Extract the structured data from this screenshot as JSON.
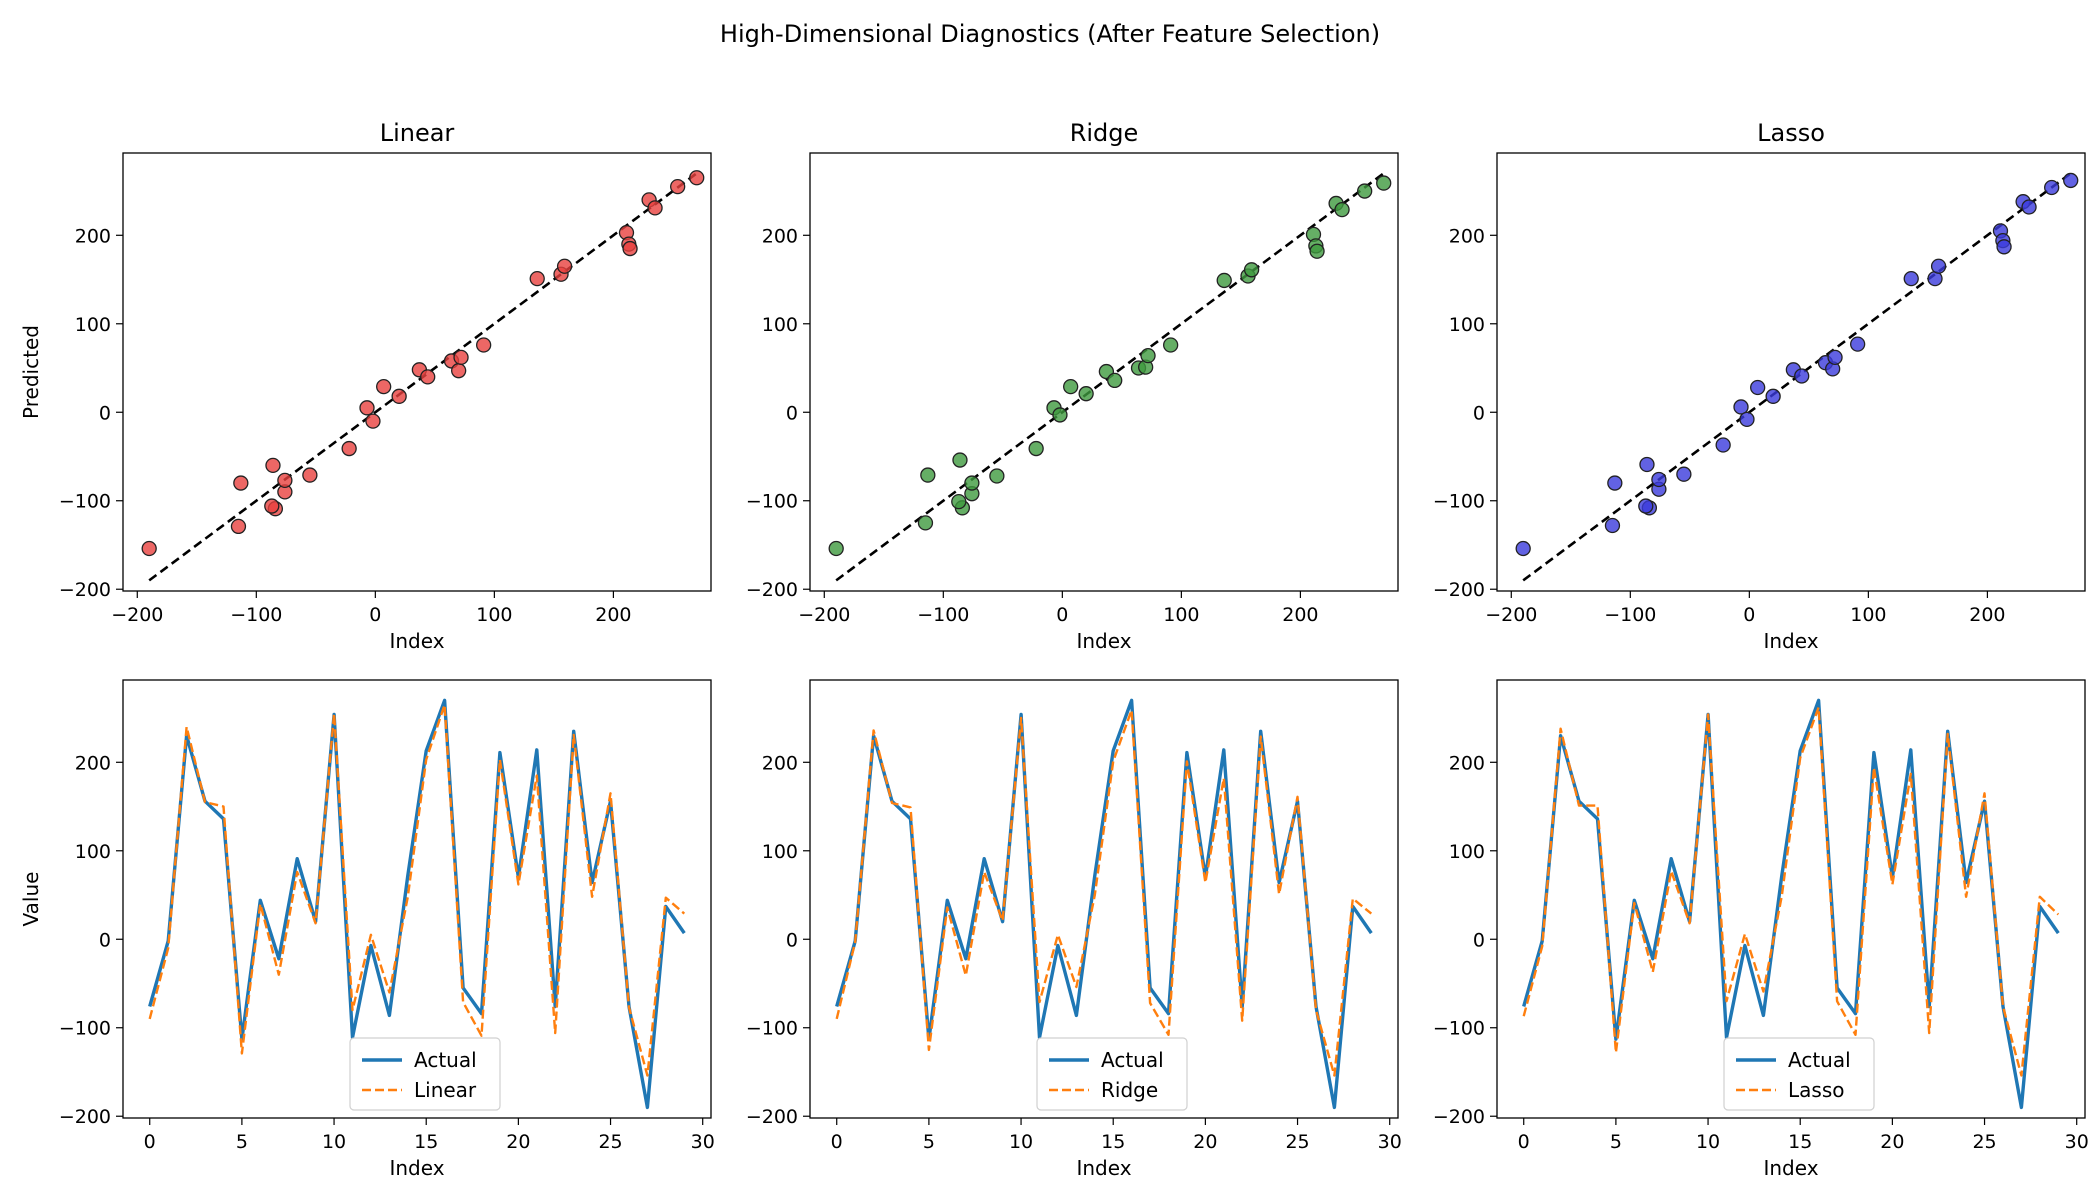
{
  "figure": {
    "suptitle": "High-Dimensional Diagnostics (After Feature Selection)"
  },
  "chart_data": [
    {
      "id": "scatter-linear",
      "type": "scatter",
      "title": "Linear",
      "xlabel": "Index",
      "ylabel": "Predicted",
      "xlim": [
        -212,
        282
      ],
      "ylim": [
        -202,
        293
      ],
      "xticks": [
        -200,
        -100,
        0,
        100,
        200
      ],
      "yticks": [
        -200,
        -100,
        0,
        100,
        200
      ],
      "color": "#e8413f",
      "reference_line": {
        "from": [
          -190,
          -190
        ],
        "to": [
          270,
          270
        ],
        "style": "dashed",
        "color": "#000000"
      },
      "x": [
        -190,
        -113,
        -115,
        -86,
        -84,
        -87,
        -76,
        -76,
        -55,
        -22,
        -7,
        -2,
        7,
        20,
        37,
        44,
        64,
        70,
        72,
        91,
        136,
        156,
        159,
        211,
        213,
        214,
        230,
        235,
        254,
        270
      ],
      "y": [
        -154,
        -80,
        -129,
        -60,
        -109,
        -106,
        -90,
        -77,
        -71,
        -41,
        5,
        -10,
        29,
        18,
        48,
        40,
        58,
        47,
        62,
        76,
        151,
        156,
        165,
        203,
        190,
        185,
        240,
        231,
        255,
        265
      ]
    },
    {
      "id": "scatter-ridge",
      "type": "scatter",
      "title": "Ridge",
      "xlabel": "Index",
      "ylabel": "",
      "xlim": [
        -212,
        282
      ],
      "ylim": [
        -202,
        293
      ],
      "xticks": [
        -200,
        -100,
        0,
        100,
        200
      ],
      "yticks": [
        -200,
        -100,
        0,
        100,
        200
      ],
      "color": "#3f9a3f",
      "reference_line": {
        "from": [
          -190,
          -190
        ],
        "to": [
          270,
          270
        ],
        "style": "dashed",
        "color": "#000000"
      },
      "x": [
        -190,
        -113,
        -115,
        -86,
        -84,
        -87,
        -76,
        -76,
        -55,
        -22,
        -7,
        -2,
        7,
        20,
        37,
        44,
        64,
        70,
        72,
        91,
        136,
        156,
        159,
        211,
        213,
        214,
        230,
        235,
        254,
        270
      ],
      "y": [
        -154,
        -71,
        -125,
        -54,
        -108,
        -101,
        -92,
        -80,
        -72,
        -41,
        5,
        -3,
        29,
        21,
        46,
        36,
        50,
        51,
        64,
        76,
        149,
        154,
        161,
        201,
        188,
        182,
        236,
        229,
        250,
        259
      ]
    },
    {
      "id": "scatter-lasso",
      "type": "scatter",
      "title": "Lasso",
      "xlabel": "Index",
      "ylabel": "",
      "xlim": [
        -212,
        282
      ],
      "ylim": [
        -202,
        293
      ],
      "xticks": [
        -200,
        -100,
        0,
        100,
        200
      ],
      "yticks": [
        -200,
        -100,
        0,
        100,
        200
      ],
      "color": "#3b3bdc",
      "reference_line": {
        "from": [
          -190,
          -190
        ],
        "to": [
          270,
          270
        ],
        "style": "dashed",
        "color": "#000000"
      },
      "x": [
        -190,
        -113,
        -115,
        -86,
        -84,
        -87,
        -76,
        -76,
        -55,
        -22,
        -7,
        -2,
        7,
        20,
        37,
        44,
        64,
        70,
        72,
        91,
        136,
        156,
        159,
        211,
        213,
        214,
        230,
        235,
        254,
        270
      ],
      "y": [
        -154,
        -80,
        -128,
        -59,
        -108,
        -106,
        -87,
        -76,
        -70,
        -37,
        6,
        -8,
        28,
        18,
        48,
        41,
        56,
        49,
        62,
        77,
        151,
        151,
        165,
        205,
        194,
        187,
        238,
        232,
        254,
        262
      ]
    },
    {
      "id": "line-linear",
      "type": "line",
      "title": "",
      "xlabel": "Index",
      "ylabel": "Value",
      "xlim": [
        -1.45,
        30.45
      ],
      "ylim": [
        -202,
        293
      ],
      "xticks": [
        0,
        5,
        10,
        15,
        20,
        25,
        30
      ],
      "yticks": [
        -200,
        -100,
        0,
        100,
        200
      ],
      "legend": {
        "placement": "lower-center"
      },
      "x": [
        0,
        1,
        2,
        3,
        4,
        5,
        6,
        7,
        8,
        9,
        10,
        11,
        12,
        13,
        14,
        15,
        16,
        17,
        18,
        19,
        20,
        21,
        22,
        23,
        24,
        25,
        26,
        27,
        28,
        29
      ],
      "series": [
        {
          "name": "Actual",
          "color": "#1f77b4",
          "style": "solid",
          "values": [
            -76,
            -2,
            230,
            156,
            136,
            -113,
            44,
            -22,
            91,
            20,
            254,
            -111,
            -7,
            -86,
            72,
            213,
            270,
            -55,
            -84,
            211,
            70,
            214,
            -76,
            235,
            64,
            156,
            -76,
            -190,
            37,
            7
          ]
        },
        {
          "name": "Linear",
          "color": "#ff7f0e",
          "style": "dashed",
          "values": [
            -90,
            -10,
            240,
            155,
            150,
            -129,
            40,
            -40,
            76,
            18,
            255,
            -80,
            5,
            -60,
            48,
            203,
            265,
            -71,
            -109,
            203,
            62,
            185,
            -106,
            231,
            48,
            165,
            -77,
            -154,
            47,
            29
          ]
        }
      ]
    },
    {
      "id": "line-ridge",
      "type": "line",
      "title": "",
      "xlabel": "Index",
      "ylabel": "",
      "xlim": [
        -1.45,
        30.45
      ],
      "ylim": [
        -202,
        293
      ],
      "xticks": [
        0,
        5,
        10,
        15,
        20,
        25,
        30
      ],
      "yticks": [
        -200,
        -100,
        0,
        100,
        200
      ],
      "legend": {
        "placement": "lower-center"
      },
      "x": [
        0,
        1,
        2,
        3,
        4,
        5,
        6,
        7,
        8,
        9,
        10,
        11,
        12,
        13,
        14,
        15,
        16,
        17,
        18,
        19,
        20,
        21,
        22,
        23,
        24,
        25,
        26,
        27,
        28,
        29
      ],
      "series": [
        {
          "name": "Actual",
          "color": "#1f77b4",
          "style": "solid",
          "values": [
            -76,
            -2,
            230,
            156,
            136,
            -113,
            44,
            -22,
            91,
            20,
            254,
            -111,
            -7,
            -86,
            72,
            213,
            270,
            -55,
            -84,
            211,
            70,
            214,
            -76,
            235,
            64,
            156,
            -76,
            -190,
            37,
            7
          ]
        },
        {
          "name": "Ridge",
          "color": "#ff7f0e",
          "style": "dashed",
          "values": [
            -90,
            -3,
            236,
            154,
            149,
            -125,
            36,
            -41,
            76,
            21,
            250,
            -71,
            5,
            -54,
            50,
            201,
            259,
            -72,
            -108,
            201,
            64,
            182,
            -92,
            229,
            51,
            161,
            -80,
            -154,
            46,
            29
          ]
        }
      ]
    },
    {
      "id": "line-lasso",
      "type": "line",
      "title": "",
      "xlabel": "Index",
      "ylabel": "",
      "xlim": [
        -1.45,
        30.45
      ],
      "ylim": [
        -202,
        293
      ],
      "xticks": [
        0,
        5,
        10,
        15,
        20,
        25,
        30
      ],
      "yticks": [
        -200,
        -100,
        0,
        100,
        200
      ],
      "legend": {
        "placement": "lower-center"
      },
      "x": [
        0,
        1,
        2,
        3,
        4,
        5,
        6,
        7,
        8,
        9,
        10,
        11,
        12,
        13,
        14,
        15,
        16,
        17,
        18,
        19,
        20,
        21,
        22,
        23,
        24,
        25,
        26,
        27,
        28,
        29
      ],
      "series": [
        {
          "name": "Actual",
          "color": "#1f77b4",
          "style": "solid",
          "values": [
            -76,
            -2,
            230,
            156,
            136,
            -113,
            44,
            -22,
            91,
            20,
            254,
            -111,
            -7,
            -86,
            72,
            213,
            270,
            -55,
            -84,
            211,
            70,
            214,
            -76,
            235,
            64,
            156,
            -76,
            -190,
            37,
            7
          ]
        },
        {
          "name": "Lasso",
          "color": "#ff7f0e",
          "style": "dashed",
          "values": [
            -87,
            -8,
            238,
            151,
            151,
            -128,
            41,
            -37,
            77,
            18,
            254,
            -70,
            6,
            -59,
            49,
            205,
            262,
            -70,
            -108,
            194,
            62,
            187,
            -106,
            232,
            48,
            165,
            -76,
            -154,
            48,
            28
          ]
        }
      ]
    }
  ]
}
